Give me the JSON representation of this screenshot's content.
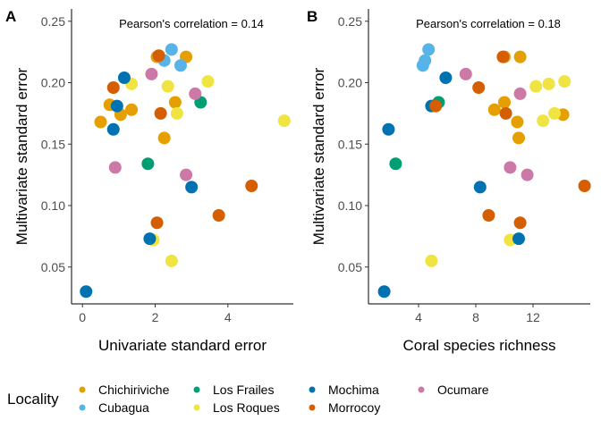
{
  "legend": {
    "title": "Locality",
    "items": [
      {
        "name": "Chichiriviche",
        "color": "#E69F00"
      },
      {
        "name": "Cubagua",
        "color": "#56B4E9"
      },
      {
        "name": "Los Frailes",
        "color": "#009E73"
      },
      {
        "name": "Los Roques",
        "color": "#F0E442"
      },
      {
        "name": "Mochima",
        "color": "#0072B2"
      },
      {
        "name": "Morrocoy",
        "color": "#D55E00"
      },
      {
        "name": "Ocumare",
        "color": "#CC79A7"
      }
    ],
    "position": "bottom"
  },
  "chart_data": [
    {
      "type": "scatter",
      "panel_label": "A",
      "annotation": "Pearson's correlation = 0.14",
      "xlabel": "Univariate standard error",
      "ylabel": "Multivariate standard error",
      "xlim": [
        -0.3,
        5.8
      ],
      "ylim": [
        0.02,
        0.26
      ],
      "xticks": [
        0,
        2,
        4
      ],
      "yticks": [
        0.05,
        0.1,
        0.15,
        0.2,
        0.25
      ],
      "ytick_labels": [
        "0.05",
        "0.10",
        "0.15",
        "0.20",
        "0.25"
      ],
      "grid": false,
      "series": [
        {
          "name": "Chichiriviche",
          "points": [
            [
              0.5,
              0.168
            ],
            [
              0.75,
              0.182
            ],
            [
              1.05,
              0.174
            ],
            [
              1.35,
              0.178
            ],
            [
              2.05,
              0.221
            ],
            [
              2.25,
              0.155
            ],
            [
              2.55,
              0.184
            ],
            [
              2.85,
              0.221
            ]
          ]
        },
        {
          "name": "Cubagua",
          "points": [
            [
              2.25,
              0.218
            ],
            [
              2.45,
              0.227
            ],
            [
              2.7,
              0.214
            ]
          ]
        },
        {
          "name": "Los Frailes",
          "points": [
            [
              1.8,
              0.134
            ],
            [
              3.25,
              0.184
            ]
          ]
        },
        {
          "name": "Los Roques",
          "points": [
            [
              1.35,
              0.199
            ],
            [
              2.35,
              0.197
            ],
            [
              2.6,
              0.175
            ],
            [
              3.45,
              0.201
            ],
            [
              5.55,
              0.169
            ],
            [
              1.95,
              0.072
            ],
            [
              2.45,
              0.055
            ]
          ]
        },
        {
          "name": "Mochima",
          "points": [
            [
              0.1,
              0.03
            ],
            [
              0.85,
              0.162
            ],
            [
              0.95,
              0.181
            ],
            [
              1.15,
              0.204
            ],
            [
              1.85,
              0.073
            ],
            [
              3.0,
              0.115
            ]
          ]
        },
        {
          "name": "Morrocoy",
          "points": [
            [
              0.85,
              0.196
            ],
            [
              2.15,
              0.175
            ],
            [
              2.1,
              0.222
            ],
            [
              2.05,
              0.086
            ],
            [
              3.75,
              0.092
            ],
            [
              4.65,
              0.116
            ]
          ]
        },
        {
          "name": "Ocumare",
          "points": [
            [
              0.9,
              0.131
            ],
            [
              1.9,
              0.207
            ],
            [
              2.85,
              0.125
            ],
            [
              3.1,
              0.191
            ]
          ]
        }
      ]
    },
    {
      "type": "scatter",
      "panel_label": "B",
      "annotation": "Pearson's correlation = 0.18",
      "xlabel": "Coral species richness",
      "ylabel": "Multivariate standard error",
      "xlim": [
        0.5,
        16.0
      ],
      "ylim": [
        0.02,
        0.26
      ],
      "xticks": [
        4,
        8,
        12
      ],
      "yticks": [
        0.05,
        0.1,
        0.15,
        0.2,
        0.25
      ],
      "ytick_labels": [
        "0.05",
        "0.10",
        "0.15",
        "0.20",
        "0.25"
      ],
      "grid": false,
      "series": [
        {
          "name": "Chichiriviche",
          "points": [
            [
              9.3,
              0.178
            ],
            [
              10.0,
              0.184
            ],
            [
              10.0,
              0.221
            ],
            [
              10.9,
              0.168
            ],
            [
              11.0,
              0.155
            ],
            [
              11.1,
              0.221
            ],
            [
              14.1,
              0.174
            ]
          ]
        },
        {
          "name": "Cubagua",
          "points": [
            [
              4.3,
              0.214
            ],
            [
              4.45,
              0.218
            ],
            [
              4.7,
              0.227
            ]
          ]
        },
        {
          "name": "Los Frailes",
          "points": [
            [
              2.4,
              0.134
            ],
            [
              5.4,
              0.184
            ]
          ]
        },
        {
          "name": "Los Roques",
          "points": [
            [
              4.9,
              0.055
            ],
            [
              10.4,
              0.072
            ],
            [
              12.2,
              0.197
            ],
            [
              13.1,
              0.199
            ],
            [
              13.5,
              0.175
            ],
            [
              14.2,
              0.201
            ],
            [
              12.7,
              0.169
            ]
          ]
        },
        {
          "name": "Mochima",
          "points": [
            [
              1.6,
              0.03
            ],
            [
              1.9,
              0.162
            ],
            [
              4.9,
              0.181
            ],
            [
              5.9,
              0.204
            ],
            [
              8.3,
              0.115
            ],
            [
              11.0,
              0.073
            ]
          ]
        },
        {
          "name": "Morrocoy",
          "points": [
            [
              5.2,
              0.181
            ],
            [
              8.2,
              0.196
            ],
            [
              8.9,
              0.092
            ],
            [
              9.9,
              0.221
            ],
            [
              10.1,
              0.175
            ],
            [
              11.1,
              0.086
            ],
            [
              15.6,
              0.116
            ]
          ]
        },
        {
          "name": "Ocumare",
          "points": [
            [
              7.3,
              0.207
            ],
            [
              10.4,
              0.131
            ],
            [
              11.1,
              0.191
            ],
            [
              11.6,
              0.125
            ]
          ]
        }
      ]
    }
  ]
}
